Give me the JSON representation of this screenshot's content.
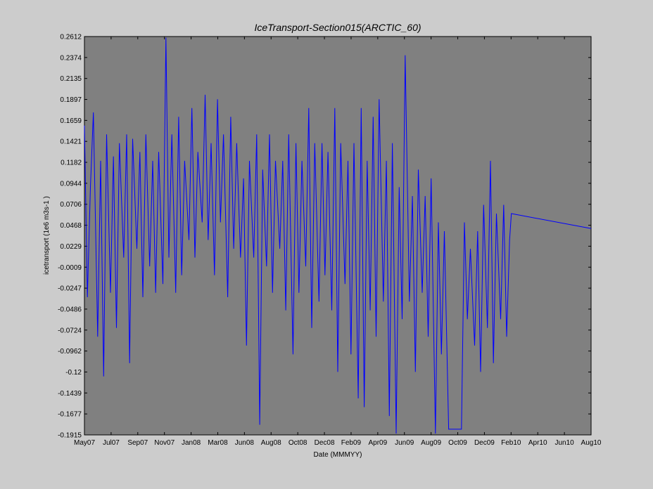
{
  "chart_data": {
    "type": "line",
    "title": "IceTransport-Section015(ARCTIC_60)",
    "xlabel": "Date (MMMYY)",
    "ylabel": "icetransport (1e6 m3s-1 )",
    "xlim": [
      "2007-05",
      "2010-08"
    ],
    "ylim": [
      -0.1915,
      0.2612
    ],
    "yticks": [
      "-0.1915",
      "-0.1677",
      "-0.1439",
      "-0.12",
      "-0.0962",
      "-0.0724",
      "-0.0486",
      "-0.0247",
      "-0.0009",
      "0.0229",
      "0.0468",
      "0.0706",
      "0.0944",
      "0.1182",
      "0.1421",
      "0.1659",
      "0.1897",
      "0.2135",
      "0.2374",
      "0.2612"
    ],
    "xticks": [
      "May07",
      "Jul07",
      "Sep07",
      "Nov07",
      "Jan08",
      "Mar08",
      "Jun08",
      "Aug08",
      "Oct08",
      "Dec08",
      "Feb09",
      "Apr09",
      "Jun09",
      "Aug09",
      "Oct09",
      "Dec09",
      "Feb10",
      "Apr10",
      "Jun10",
      "Aug10"
    ],
    "grid": false,
    "legend": "none",
    "background": "#808080",
    "series": [
      {
        "color": "#0000ff",
        "x": [
          "2007-05-01",
          "2007-05-08",
          "2007-05-15",
          "2007-05-22",
          "2007-06-01",
          "2007-06-08",
          "2007-06-15",
          "2007-06-22",
          "2007-07-01",
          "2007-07-08",
          "2007-07-15",
          "2007-07-22",
          "2007-08-01",
          "2007-08-08",
          "2007-08-15",
          "2007-08-22",
          "2007-09-01",
          "2007-09-08",
          "2007-09-15",
          "2007-09-22",
          "2007-10-01",
          "2007-10-08",
          "2007-10-15",
          "2007-10-22",
          "2007-11-01",
          "2007-11-08",
          "2007-11-15",
          "2007-11-22",
          "2007-12-01",
          "2007-12-08",
          "2007-12-15",
          "2007-12-22",
          "2008-01-01",
          "2008-01-08",
          "2008-01-15",
          "2008-01-22",
          "2008-02-01",
          "2008-02-08",
          "2008-02-15",
          "2008-02-22",
          "2008-03-01",
          "2008-03-08",
          "2008-03-15",
          "2008-03-22",
          "2008-04-01",
          "2008-04-08",
          "2008-04-15",
          "2008-04-22",
          "2008-05-01",
          "2008-05-08",
          "2008-05-15",
          "2008-05-22",
          "2008-06-01",
          "2008-06-08",
          "2008-06-15",
          "2008-06-22",
          "2008-07-01",
          "2008-07-08",
          "2008-07-15",
          "2008-07-22",
          "2008-08-01",
          "2008-08-08",
          "2008-08-15",
          "2008-08-22",
          "2008-09-01",
          "2008-09-08",
          "2008-09-15",
          "2008-09-22",
          "2008-10-01",
          "2008-10-08",
          "2008-10-15",
          "2008-10-22",
          "2008-11-01",
          "2008-11-08",
          "2008-11-15",
          "2008-11-22",
          "2008-12-01",
          "2008-12-08",
          "2008-12-15",
          "2008-12-22",
          "2009-01-01",
          "2009-01-08",
          "2009-01-15",
          "2009-01-22",
          "2009-02-01",
          "2009-02-08",
          "2009-02-15",
          "2009-02-22",
          "2009-03-01",
          "2009-03-08",
          "2009-03-15",
          "2009-03-22",
          "2009-04-01",
          "2009-04-08",
          "2009-04-15",
          "2009-04-22",
          "2009-05-01",
          "2009-05-08",
          "2009-05-15",
          "2009-05-22",
          "2009-06-01",
          "2009-06-08",
          "2009-06-15",
          "2009-06-22",
          "2009-07-01",
          "2009-07-08",
          "2009-07-15",
          "2009-07-22",
          "2009-08-01",
          "2009-08-08",
          "2009-08-15",
          "2009-08-22",
          "2009-09-01",
          "2009-09-08",
          "2009-09-15",
          "2009-09-22",
          "2009-10-01",
          "2009-10-08",
          "2009-10-15",
          "2009-10-22",
          "2009-11-01",
          "2009-11-08",
          "2009-11-15",
          "2009-11-22",
          "2009-12-01",
          "2009-12-08",
          "2009-12-15",
          "2009-12-22",
          "2010-01-01",
          "2010-01-08",
          "2010-01-15",
          "2010-01-22",
          "2010-01-26",
          "2010-08-01"
        ],
        "y": [
          0.16,
          -0.035,
          0.09,
          0.175,
          -0.08,
          0.12,
          -0.125,
          0.15,
          -0.03,
          0.125,
          -0.07,
          0.14,
          0.01,
          0.15,
          -0.11,
          0.145,
          0.02,
          0.13,
          -0.035,
          0.15,
          0.0,
          0.12,
          -0.03,
          0.13,
          -0.02,
          0.26,
          0.01,
          0.15,
          -0.03,
          0.17,
          -0.01,
          0.12,
          0.03,
          0.18,
          0.01,
          0.13,
          0.05,
          0.195,
          0.03,
          0.14,
          -0.01,
          0.19,
          0.05,
          0.15,
          -0.035,
          0.17,
          0.02,
          0.14,
          0.01,
          0.1,
          -0.09,
          0.12,
          0.01,
          0.15,
          -0.18,
          0.11,
          0.0,
          0.15,
          -0.03,
          0.12,
          0.02,
          0.12,
          -0.05,
          0.15,
          -0.1,
          0.14,
          -0.03,
          0.12,
          0.0,
          0.18,
          -0.07,
          0.14,
          -0.04,
          0.14,
          -0.01,
          0.13,
          -0.05,
          0.18,
          -0.12,
          0.14,
          -0.02,
          0.12,
          -0.1,
          0.14,
          -0.15,
          0.18,
          -0.16,
          0.12,
          -0.05,
          0.17,
          -0.08,
          0.19,
          -0.04,
          0.12,
          -0.17,
          0.14,
          -0.19,
          0.09,
          -0.06,
          0.24,
          -0.04,
          0.08,
          -0.12,
          0.11,
          -0.03,
          0.08,
          -0.08,
          0.1,
          -0.19,
          0.05,
          -0.1,
          0.04,
          -0.185,
          -0.185,
          -0.185,
          -0.185,
          -0.185,
          0.05,
          -0.06,
          0.02,
          -0.09,
          0.04,
          -0.12,
          0.07,
          -0.07,
          0.12,
          -0.11,
          0.06,
          -0.06,
          0.07,
          -0.08,
          0.03,
          0.06,
          0.043
        ]
      }
    ]
  }
}
